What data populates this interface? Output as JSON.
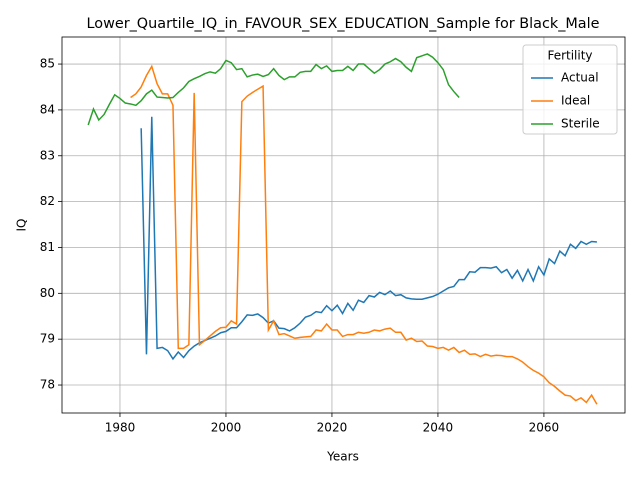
{
  "chart_data": {
    "type": "line",
    "title": "Lower_Quartile_IQ_in_FAVOUR_SEX_EDUCATION_Sample for Black_Male",
    "x_label": "Years",
    "y_label": "IQ",
    "legend_title": "Fertility",
    "legend_position": "upper right",
    "grid": true,
    "xlim": [
      1969.06,
      2075.3
    ],
    "ylim": [
      77.39,
      85.59
    ],
    "xticks": [
      1980,
      2000,
      2020,
      2040,
      2060
    ],
    "yticks": [
      78,
      79,
      80,
      81,
      82,
      83,
      84,
      85
    ],
    "x": [
      1974,
      1975,
      1976,
      1977,
      1978,
      1979,
      1980,
      1981,
      1982,
      1983,
      1984,
      1985,
      1986,
      1987,
      1988,
      1989,
      1990,
      1991,
      1992,
      1993,
      1994,
      1995,
      1996,
      1997,
      1998,
      1999,
      2000,
      2001,
      2002,
      2003,
      2004,
      2005,
      2006,
      2007,
      2008,
      2009,
      2010,
      2011,
      2012,
      2013,
      2014,
      2015,
      2016,
      2017,
      2018,
      2019,
      2020,
      2021,
      2022,
      2023,
      2024,
      2025,
      2026,
      2027,
      2028,
      2029,
      2030,
      2031,
      2032,
      2033,
      2034,
      2035,
      2036,
      2037,
      2038,
      2039,
      2040,
      2041,
      2042,
      2043,
      2044,
      2045,
      2046,
      2047,
      2048,
      2049,
      2050,
      2051,
      2052,
      2053,
      2054,
      2055,
      2056,
      2057,
      2058,
      2059,
      2060,
      2061,
      2062,
      2063,
      2064,
      2065,
      2066,
      2067,
      2068,
      2069,
      2070
    ],
    "series": [
      {
        "name": "Actual",
        "color": "#1f77b4",
        "values": [
          null,
          null,
          null,
          null,
          null,
          null,
          null,
          null,
          null,
          null,
          83.6,
          78.67,
          83.85,
          78.8,
          78.82,
          78.75,
          78.57,
          78.72,
          78.6,
          78.75,
          78.85,
          78.92,
          78.97,
          79.02,
          79.07,
          79.14,
          79.17,
          79.25,
          79.25,
          79.38,
          79.53,
          79.52,
          79.55,
          79.47,
          79.35,
          79.4,
          79.24,
          79.23,
          79.18,
          79.25,
          79.35,
          79.48,
          79.52,
          79.6,
          79.58,
          79.73,
          79.62,
          79.74,
          79.56,
          79.78,
          79.63,
          79.85,
          79.8,
          79.95,
          79.92,
          80.02,
          79.97,
          80.05,
          79.95,
          79.97,
          79.9,
          79.88,
          79.87,
          79.87,
          79.9,
          79.93,
          79.98,
          80.05,
          80.12,
          80.15,
          80.3,
          80.3,
          80.47,
          80.46,
          80.56,
          80.56,
          80.55,
          80.58,
          80.45,
          80.52,
          80.33,
          80.5,
          80.27,
          80.52,
          80.27,
          80.58,
          80.4,
          80.75,
          80.65,
          80.92,
          80.82,
          81.07,
          80.98,
          81.13,
          81.07,
          81.13,
          81.12
        ]
      },
      {
        "name": "Ideal",
        "color": "#ff7f0e",
        "values": [
          null,
          null,
          null,
          null,
          null,
          null,
          null,
          null,
          84.27,
          84.35,
          84.5,
          84.75,
          84.95,
          84.57,
          84.35,
          84.35,
          84.1,
          78.8,
          78.8,
          78.88,
          84.37,
          78.88,
          78.97,
          79.07,
          79.17,
          79.25,
          79.26,
          79.4,
          79.33,
          84.18,
          84.3,
          84.38,
          84.45,
          84.52,
          79.2,
          79.4,
          79.1,
          79.12,
          79.07,
          79.02,
          79.04,
          79.05,
          79.06,
          79.2,
          79.18,
          79.33,
          79.2,
          79.2,
          79.06,
          79.1,
          79.1,
          79.15,
          79.13,
          79.15,
          79.2,
          79.18,
          79.22,
          79.24,
          79.15,
          79.15,
          78.98,
          79.02,
          78.95,
          78.96,
          78.85,
          78.84,
          78.8,
          78.82,
          78.76,
          78.82,
          78.71,
          78.76,
          78.67,
          78.68,
          78.62,
          78.67,
          78.63,
          78.65,
          78.64,
          78.62,
          78.62,
          78.57,
          78.5,
          78.4,
          78.32,
          78.26,
          78.18,
          78.05,
          77.97,
          77.87,
          77.78,
          77.76,
          77.66,
          77.72,
          77.62,
          77.78,
          77.58
        ]
      },
      {
        "name": "Sterile",
        "color": "#2ca02c",
        "values": [
          83.67,
          84.02,
          83.78,
          83.9,
          84.12,
          84.33,
          84.25,
          84.15,
          84.13,
          84.1,
          84.2,
          84.35,
          84.43,
          84.28,
          84.27,
          84.26,
          84.27,
          84.38,
          84.48,
          84.62,
          84.68,
          84.73,
          84.79,
          84.83,
          84.8,
          84.9,
          85.08,
          85.03,
          84.88,
          84.9,
          84.72,
          84.76,
          84.78,
          84.73,
          84.77,
          84.9,
          84.75,
          84.66,
          84.72,
          84.72,
          84.82,
          84.84,
          84.84,
          84.99,
          84.9,
          84.96,
          84.84,
          84.86,
          84.86,
          84.95,
          84.86,
          85.0,
          85.0,
          84.9,
          84.8,
          84.88,
          85.0,
          85.05,
          85.12,
          85.05,
          84.93,
          84.84,
          85.14,
          85.18,
          85.22,
          85.15,
          85.03,
          84.88,
          84.55,
          84.4,
          84.27,
          null,
          null,
          null,
          null,
          null,
          null,
          null,
          null,
          null,
          null,
          null,
          null,
          null,
          null,
          null,
          null,
          null,
          null,
          null,
          null,
          null,
          null,
          null,
          null,
          null,
          null
        ]
      }
    ]
  }
}
